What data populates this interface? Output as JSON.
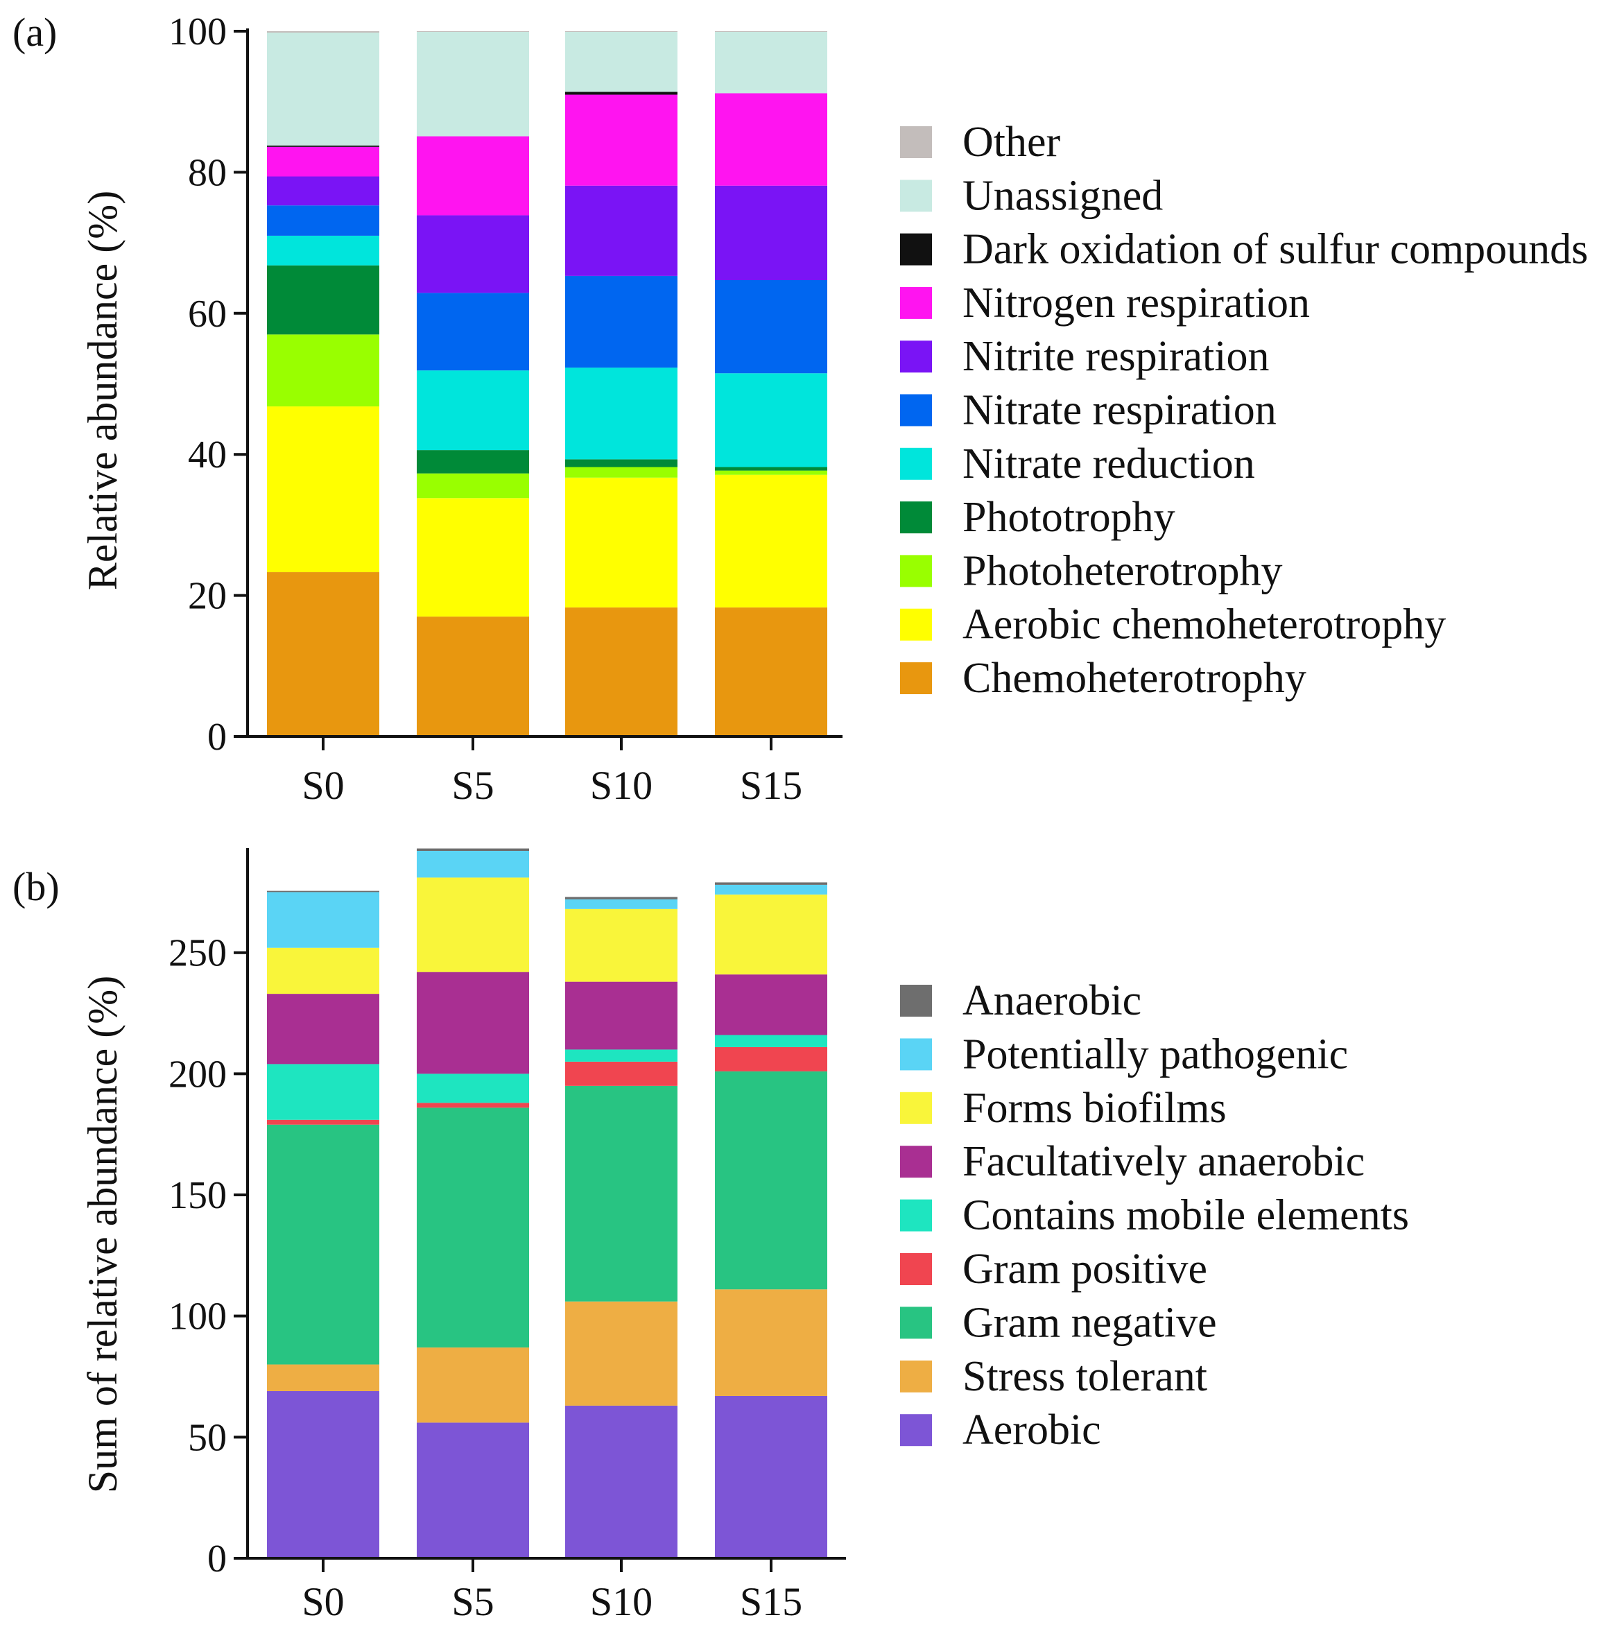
{
  "chart_data": [
    {
      "type": "bar",
      "stacked": true,
      "panel_label": "(a)",
      "ylabel": "Relative abundance (%)",
      "xlabel": "",
      "ylim": [
        0,
        100
      ],
      "yticks": [
        0,
        20,
        40,
        60,
        80,
        100
      ],
      "categories": [
        "S0",
        "S5",
        "S10",
        "S15"
      ],
      "series": [
        {
          "name": "Chemoheterotrophy",
          "color": "#e8970f",
          "values": [
            23.3,
            17.0,
            18.3,
            18.3
          ]
        },
        {
          "name": "Aerobic chemoheterotrophy",
          "color": "#ffff00",
          "values": [
            23.5,
            16.8,
            18.4,
            18.8
          ]
        },
        {
          "name": "Photoheterotrophy",
          "color": "#99ff00",
          "values": [
            10.2,
            3.5,
            1.5,
            0.6
          ]
        },
        {
          "name": "Phototrophy",
          "color": "#008a38",
          "values": [
            9.8,
            3.3,
            1.1,
            0.5
          ]
        },
        {
          "name": "Nitrate reduction",
          "color": "#00e5dc",
          "values": [
            4.2,
            11.3,
            13.0,
            13.3
          ]
        },
        {
          "name": "Nitrate respiration",
          "color": "#0066f0",
          "values": [
            4.3,
            11.0,
            13.0,
            13.2
          ]
        },
        {
          "name": "Nitrite respiration",
          "color": "#7a14f5",
          "values": [
            4.1,
            11.0,
            12.8,
            13.4
          ]
        },
        {
          "name": "Nitrogen respiration",
          "color": "#ff14f0",
          "values": [
            4.2,
            11.2,
            12.9,
            13.1
          ]
        },
        {
          "name": "Dark oxidation of sulfur compounds",
          "color": "#111111",
          "values": [
            0.2,
            0.0,
            0.4,
            0.0
          ]
        },
        {
          "name": "Unassigned",
          "color": "#c8eae2",
          "values": [
            16.0,
            14.8,
            8.5,
            8.7
          ]
        },
        {
          "name": "Other",
          "color": "#c3bdbb",
          "values": [
            0.2,
            0.1,
            0.1,
            0.1
          ]
        }
      ]
    },
    {
      "type": "bar",
      "stacked": true,
      "panel_label": "(b)",
      "ylabel": "Sum of relative abundance (%)",
      "xlabel": "",
      "ylim": [
        0,
        292
      ],
      "yticks": [
        0,
        50,
        100,
        150,
        200,
        250
      ],
      "categories": [
        "S0",
        "S5",
        "S10",
        "S15"
      ],
      "series": [
        {
          "name": "Aerobic",
          "color": "#7d55d6",
          "values": [
            69,
            56,
            63,
            67
          ]
        },
        {
          "name": "Stress tolerant",
          "color": "#eeae44",
          "values": [
            11,
            31,
            43,
            44
          ]
        },
        {
          "name": "Gram negative",
          "color": "#28c482",
          "values": [
            99,
            99,
            89,
            90
          ]
        },
        {
          "name": "Gram positive",
          "color": "#f04550",
          "values": [
            2,
            2,
            10,
            10
          ]
        },
        {
          "name": "Contains mobile elements",
          "color": "#1ee5c0",
          "values": [
            23,
            12,
            5,
            5
          ]
        },
        {
          "name": "Facultatively anaerobic",
          "color": "#a92f92",
          "values": [
            29,
            42,
            28,
            25
          ]
        },
        {
          "name": "Forms biofilms",
          "color": "#f9f53a",
          "values": [
            19,
            39,
            30,
            33
          ]
        },
        {
          "name": "Potentially pathogenic",
          "color": "#5ad4f5",
          "values": [
            23,
            11,
            4,
            4
          ]
        },
        {
          "name": "Anaerobic",
          "color": "#6e6e6e",
          "values": [
            0.5,
            1,
            1,
            1
          ]
        }
      ]
    }
  ]
}
